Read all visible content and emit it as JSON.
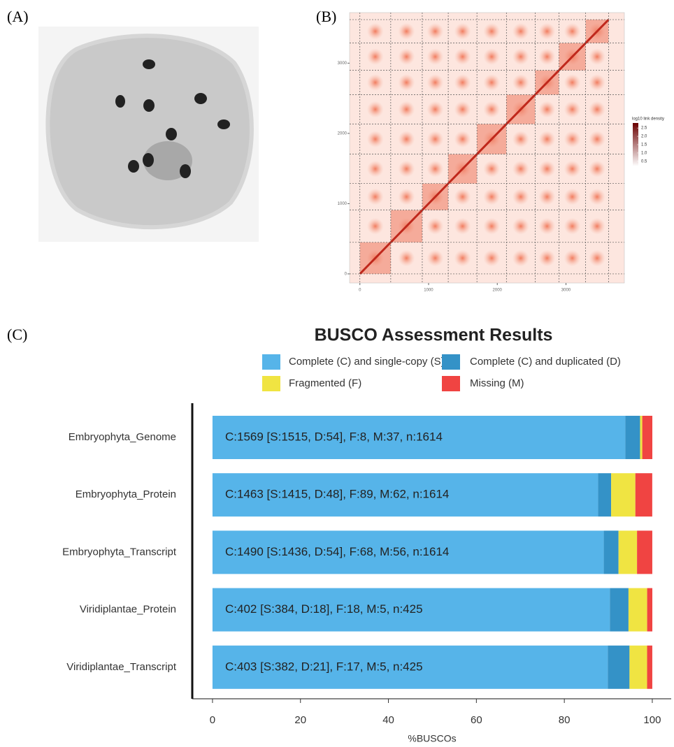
{
  "panel_labels": [
    "(A)",
    "(B)",
    "(C)"
  ],
  "chart_data": [
    {
      "type": "heatmap",
      "legend_title": "log10 link density",
      "colorbar_lim": [
        0.2,
        2.8
      ],
      "colorbar_ticks": [
        {
          "value": 2.5,
          "label": "2.5"
        },
        {
          "value": 2,
          "label": "2.0"
        },
        {
          "value": 1.5,
          "label": "1.5"
        },
        {
          "value": 1,
          "label": "1.0"
        },
        {
          "value": 0.5,
          "label": "0.5"
        }
      ],
      "colors": [
        "#ffffff",
        "#6b0000"
      ],
      "boundaries": [
        0,
        449,
        908,
        1286,
        1704,
        2133,
        2551,
        2898,
        3286,
        3620
      ],
      "xlim": [
        -150,
        3850
      ],
      "ylim": [
        -130,
        3720
      ],
      "xticks": [
        0,
        1000,
        2000,
        3000
      ],
      "yticks": [
        0,
        1000,
        2000,
        3000
      ]
    },
    {
      "type": "stacked_barh",
      "title": "BUSCO Assessment Results",
      "xlabel": "%BUSCOs",
      "categories": [
        "Embryophyta_Genome",
        "Embryophyta_Protein",
        "Embryophyta_Transcript",
        "Viridiplantae_Protein",
        "Viridiplantae_Transcript"
      ],
      "series": [
        {
          "name": "Complete (C) and single-copy (S)",
          "color": "#56b4e9",
          "values": [
            93.87,
            87.67,
            88.97,
            90.35,
            89.88
          ]
        },
        {
          "name": "Complete (C) and duplicated (D)",
          "color": "#3492c7",
          "values": [
            3.35,
            2.97,
            3.35,
            4.24,
            4.94
          ]
        },
        {
          "name": "Fragmented (F)",
          "color": "#f0e442",
          "values": [
            0.5,
            5.51,
            4.21,
            4.24,
            4.0
          ]
        },
        {
          "name": "Missing (M)",
          "color": "#f04442",
          "values": [
            2.29,
            3.84,
            3.47,
            1.18,
            1.18
          ]
        }
      ],
      "bar_labels": [
        "C:1569 [S:1515, D:54], F:8, M:37, n:1614",
        "C:1463 [S:1415, D:48], F:89, M:62, n:1614",
        "C:1490 [S:1436, D:54], F:68, M:56, n:1614",
        "C:402 [S:384, D:18], F:18, M:5, n:425",
        "C:403 [S:382, D:21], F:17, M:5, n:425"
      ],
      "xlim": [
        -4.6,
        104.3
      ],
      "xticks": [
        0,
        20,
        40,
        60,
        80,
        100
      ]
    }
  ]
}
